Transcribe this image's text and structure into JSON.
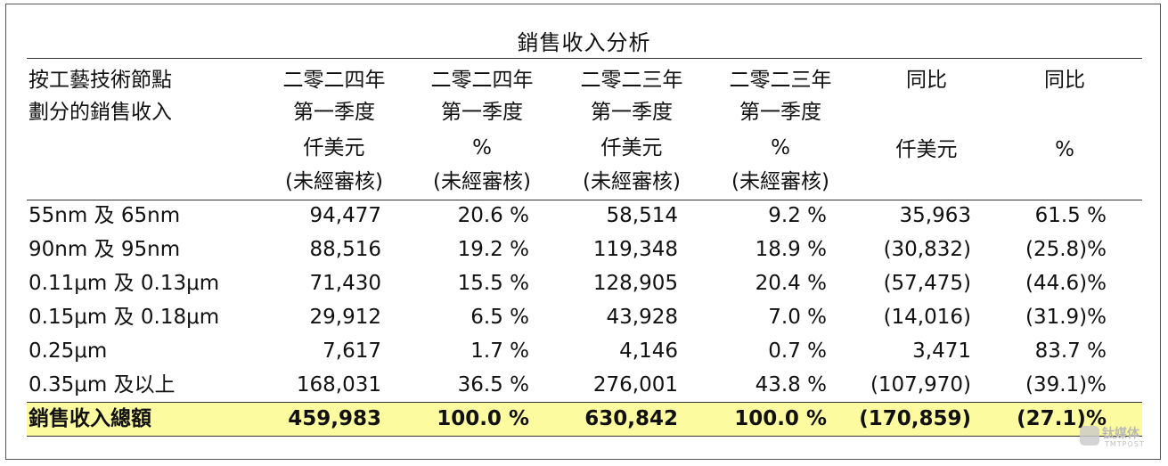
{
  "title": "銷售收入分析",
  "header": {
    "row_label": [
      "按工藝技術節點",
      "劃分的銷售收入"
    ],
    "columns": [
      [
        "二零二四年",
        "第一季度",
        "仟美元",
        "(未經審核)"
      ],
      [
        "二零二四年",
        "第一季度",
        "%",
        "(未經審核)"
      ],
      [
        "二零二三年",
        "第一季度",
        "仟美元",
        "(未經審核)"
      ],
      [
        "二零二三年",
        "第一季度",
        "%",
        "(未經審核)"
      ],
      [
        "同比",
        "",
        "仟美元",
        ""
      ],
      [
        "同比",
        "",
        "%",
        ""
      ]
    ]
  },
  "rows": [
    {
      "label": "55nm 及 65nm",
      "values": [
        "94,477",
        "20.6 %",
        "58,514",
        "9.2 %",
        "35,963",
        "61.5 %"
      ]
    },
    {
      "label": "90nm 及 95nm",
      "values": [
        "88,516",
        "19.2 %",
        "119,348",
        "18.9 %",
        "(30,832)",
        "(25.8)%"
      ]
    },
    {
      "label": "0.11μm 及 0.13μm",
      "values": [
        "71,430",
        "15.5 %",
        "128,905",
        "20.4 %",
        "(57,475)",
        "(44.6)%"
      ]
    },
    {
      "label": "0.15μm 及 0.18μm",
      "values": [
        "29,912",
        "6.5 %",
        "43,928",
        "7.0 %",
        "(14,016)",
        "(31.9)%"
      ]
    },
    {
      "label": "0.25μm",
      "values": [
        "7,617",
        "1.7 %",
        "4,146",
        "0.7 %",
        "3,471",
        "83.7 %"
      ]
    },
    {
      "label": "0.35μm 及以上",
      "values": [
        "168,031",
        "36.5 %",
        "276,001",
        "43.8 %",
        "(107,970)",
        "(39.1)%"
      ]
    }
  ],
  "total": {
    "label": "銷售收入總額",
    "values": [
      "459,983",
      "100.0 %",
      "630,842",
      "100.0 %",
      "(170,859)",
      "(27.1)%"
    ]
  },
  "colors": {
    "total_highlight": "#fdfb9f",
    "rule": "#333333"
  },
  "watermark": {
    "text": "钛媒体",
    "sub": "TMTPOST",
    "icon": "tmtpost-logo-icon"
  }
}
